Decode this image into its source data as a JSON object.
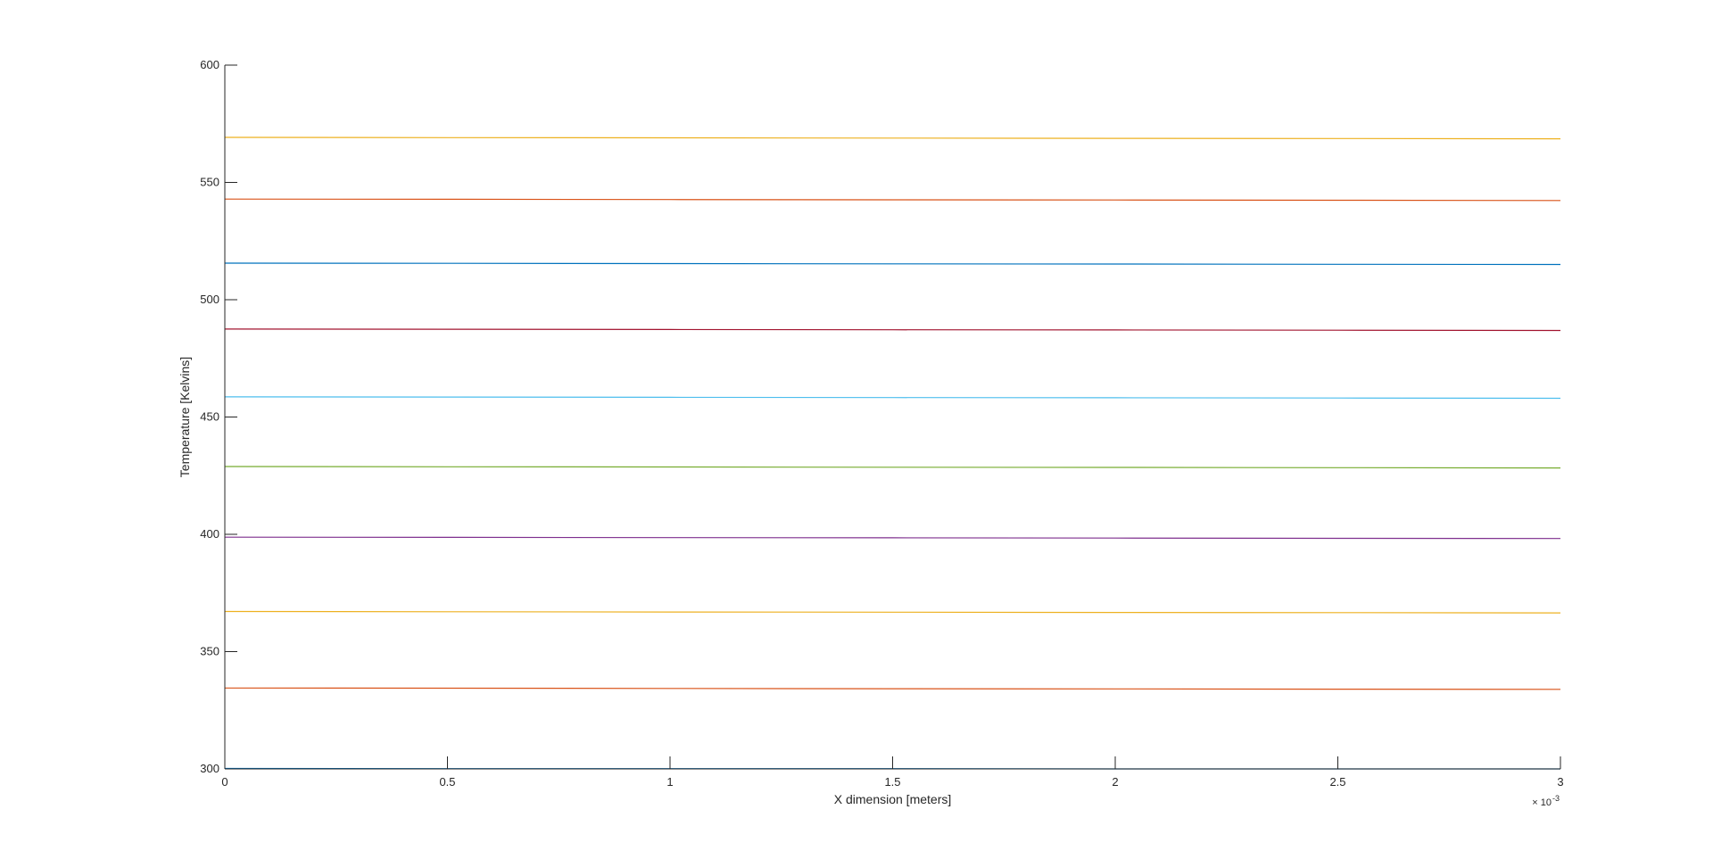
{
  "chart_data": {
    "type": "line",
    "title": "",
    "xlabel": "X dimension [meters]",
    "ylabel": "Temperature [Kelvins]",
    "x_exponent_base": "× 10",
    "x_exponent_power": "-3",
    "xlim": [
      0,
      3
    ],
    "ylim": [
      300,
      600
    ],
    "xticks": [
      {
        "value": 0,
        "label": "0"
      },
      {
        "value": 0.5,
        "label": "0.5"
      },
      {
        "value": 1,
        "label": "1"
      },
      {
        "value": 1.5,
        "label": "1.5"
      },
      {
        "value": 2,
        "label": "2"
      },
      {
        "value": 2.5,
        "label": "2.5"
      },
      {
        "value": 3,
        "label": "3"
      }
    ],
    "yticks": [
      {
        "value": 300,
        "label": "300"
      },
      {
        "value": 350,
        "label": "350"
      },
      {
        "value": 400,
        "label": "400"
      },
      {
        "value": 450,
        "label": "450"
      },
      {
        "value": 500,
        "label": "500"
      },
      {
        "value": 550,
        "label": "550"
      },
      {
        "value": 600,
        "label": "600"
      }
    ],
    "grid": false,
    "legend": "none",
    "x": [
      0,
      0.5,
      1,
      1.5,
      2,
      2.5,
      3
    ],
    "series": [
      {
        "color": "#0072BD",
        "values": [
          300.2,
          300.1,
          300.1,
          300.1,
          300.0,
          300.0,
          300.0
        ]
      },
      {
        "color": "#D95319",
        "values": [
          334.5,
          334.4,
          334.3,
          334.2,
          334.1,
          334.0,
          333.9
        ]
      },
      {
        "color": "#EDB120",
        "values": [
          367.1,
          367.0,
          366.9,
          366.8,
          366.7,
          366.6,
          366.5
        ]
      },
      {
        "color": "#7E2F8E",
        "values": [
          398.8,
          398.7,
          398.6,
          398.5,
          398.4,
          398.3,
          398.2
        ]
      },
      {
        "color": "#77AC30",
        "values": [
          428.9,
          428.8,
          428.7,
          428.6,
          428.5,
          428.4,
          428.3
        ]
      },
      {
        "color": "#4DBEEE",
        "values": [
          458.6,
          458.5,
          458.4,
          458.3,
          458.2,
          458.1,
          458.0
        ]
      },
      {
        "color": "#A2142F",
        "values": [
          487.5,
          487.4,
          487.3,
          487.2,
          487.1,
          487.0,
          486.9
        ]
      },
      {
        "color": "#0072BD",
        "values": [
          515.6,
          515.5,
          515.4,
          515.3,
          515.2,
          515.1,
          515.0
        ]
      },
      {
        "color": "#D95319",
        "values": [
          542.9,
          542.8,
          542.7,
          542.6,
          542.5,
          542.4,
          542.3
        ]
      },
      {
        "color": "#EDB120",
        "values": [
          569.2,
          569.1,
          569.0,
          568.9,
          568.8,
          568.7,
          568.6
        ]
      }
    ]
  }
}
